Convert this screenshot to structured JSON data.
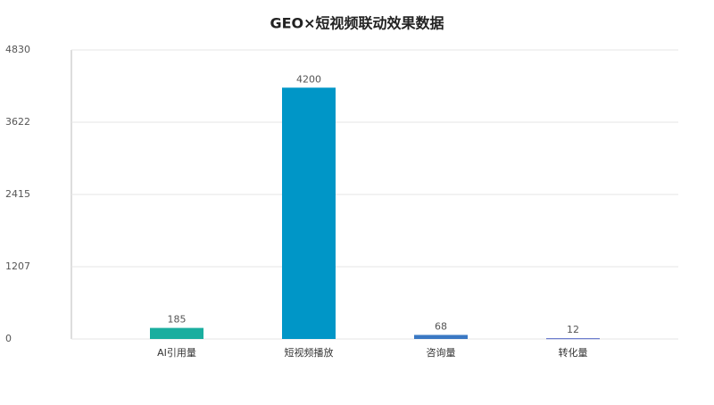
{
  "chart_data": {
    "type": "bar",
    "title": "GEO×短视频联动效果数据",
    "categories": [
      "AI引用量",
      "短视频播放",
      "咨询量",
      "转化量"
    ],
    "values": [
      185,
      4200,
      68,
      12
    ],
    "colors": [
      "#1aae9f",
      "#0096c7",
      "#3a78c3",
      "#4a5fc1"
    ],
    "ylim": [
      0,
      4830
    ],
    "yticks": [
      0,
      1207,
      2415,
      3622,
      4830
    ],
    "grid": true
  }
}
